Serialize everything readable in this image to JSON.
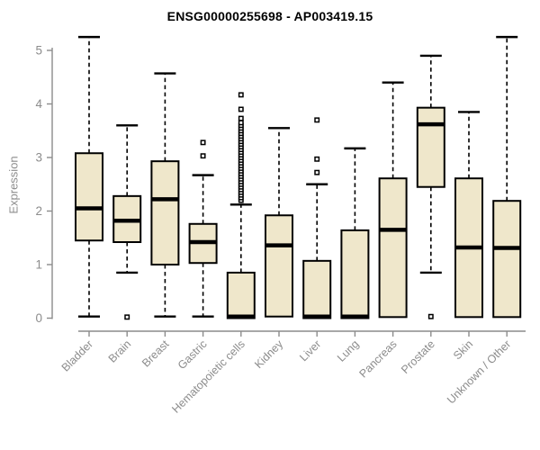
{
  "chart_data": {
    "type": "boxplot",
    "title": "ENSG00000255698 - AP003419.15",
    "ylabel": "Expression",
    "xlabel": "",
    "ylim": [
      0,
      5.3
    ],
    "yticks": [
      0,
      1,
      2,
      3,
      4,
      5
    ],
    "grid": false,
    "legend": "none",
    "colors": {
      "box_fill": "#EFE7CB",
      "box_border": "#000000",
      "median": "#000000",
      "whisker": "#000000",
      "outlier_stroke": "#000000",
      "axis": "#8c8c8c",
      "tick_label": "#8c8c8c",
      "title": "#000000"
    },
    "categories": [
      "Bladder",
      "Brain",
      "Breast",
      "Gastric",
      "Hematopoietic cells",
      "Kidney",
      "Liver",
      "Lung",
      "Pancreas",
      "Prostate",
      "Skin",
      "Unknown / Other"
    ],
    "series": [
      {
        "name": "Bladder",
        "min": 0.03,
        "q1": 1.45,
        "median": 2.05,
        "q3": 3.08,
        "max": 5.25,
        "outliers": []
      },
      {
        "name": "Brain",
        "min": 0.85,
        "q1": 1.42,
        "median": 1.82,
        "q3": 2.28,
        "max": 3.6,
        "outliers": [
          0.02
        ]
      },
      {
        "name": "Breast",
        "min": 0.03,
        "q1": 1.0,
        "median": 2.22,
        "q3": 2.93,
        "max": 4.57,
        "outliers": []
      },
      {
        "name": "Gastric",
        "min": 0.03,
        "q1": 1.03,
        "median": 1.42,
        "q3": 1.76,
        "max": 2.67,
        "outliers": [
          3.03,
          3.28
        ]
      },
      {
        "name": "Hematopoietic cells",
        "min": 0.0,
        "q1": 0.0,
        "median": 0.03,
        "q3": 0.85,
        "max": 2.12,
        "outliers": [
          2.2,
          2.25,
          2.3,
          2.35,
          2.4,
          2.45,
          2.5,
          2.55,
          2.6,
          2.65,
          2.7,
          2.75,
          2.8,
          2.85,
          2.9,
          2.95,
          3.0,
          3.05,
          3.1,
          3.15,
          3.2,
          3.25,
          3.3,
          3.35,
          3.4,
          3.45,
          3.5,
          3.55,
          3.6,
          3.65,
          3.73,
          3.9,
          4.17
        ]
      },
      {
        "name": "Kidney",
        "min": 0.02,
        "q1": 0.03,
        "median": 1.36,
        "q3": 1.92,
        "max": 3.55,
        "outliers": []
      },
      {
        "name": "Liver",
        "min": 0.0,
        "q1": 0.0,
        "median": 0.03,
        "q3": 1.07,
        "max": 2.5,
        "outliers": [
          2.72,
          2.97,
          3.7
        ]
      },
      {
        "name": "Lung",
        "min": 0.0,
        "q1": 0.0,
        "median": 0.03,
        "q3": 1.64,
        "max": 3.17,
        "outliers": []
      },
      {
        "name": "Pancreas",
        "min": 0.02,
        "q1": 0.02,
        "median": 1.65,
        "q3": 2.61,
        "max": 4.4,
        "outliers": []
      },
      {
        "name": "Prostate",
        "min": 0.85,
        "q1": 2.45,
        "median": 3.62,
        "q3": 3.93,
        "max": 4.9,
        "outliers": [
          0.03
        ]
      },
      {
        "name": "Skin",
        "min": 0.02,
        "q1": 0.02,
        "median": 1.32,
        "q3": 2.61,
        "max": 3.85,
        "outliers": []
      },
      {
        "name": "Unknown / Other",
        "min": 0.02,
        "q1": 0.02,
        "median": 1.31,
        "q3": 2.19,
        "max": 5.25,
        "outliers": []
      }
    ]
  }
}
